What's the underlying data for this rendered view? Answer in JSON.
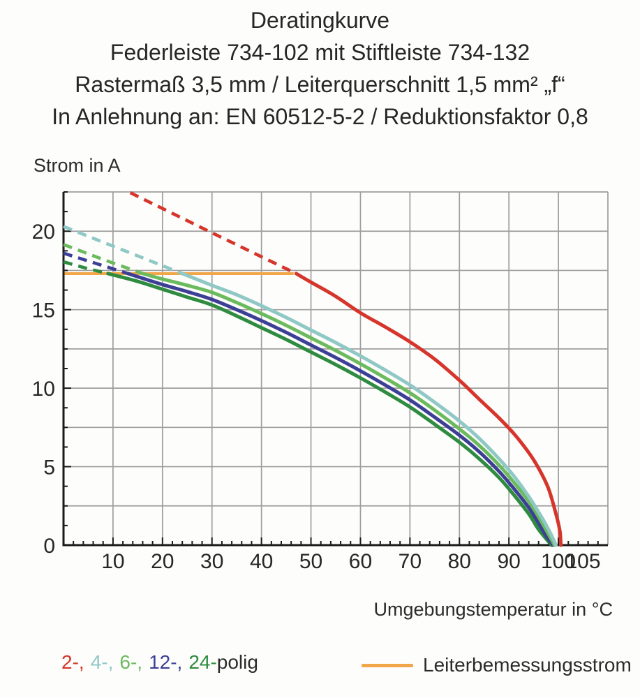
{
  "header": {
    "title_lines": [
      "Deratingkurve",
      "Federleiste 734-102 mit Stiftleiste 734-132",
      "Rastermaß 3,5 mm / Leiterquerschnitt 1,5 mm² „f“",
      "In Anlehnung an: EN 60512-5-2 / Reduktionsfaktor 0,8"
    ]
  },
  "chart_data": {
    "type": "line",
    "ylabel": "Strom in A",
    "xlabel": "Umgebungstemperatur in °C",
    "xlim": [
      0,
      110
    ],
    "ylim": [
      0,
      22.5
    ],
    "x_gridlines": [
      10,
      20,
      30,
      40,
      50,
      60,
      70,
      80,
      90,
      100,
      110
    ],
    "y_gridlines": [
      2.5,
      5,
      7.5,
      10,
      12.5,
      15,
      17.5,
      20,
      22.5
    ],
    "x_tick_values": [
      10,
      20,
      30,
      40,
      50,
      60,
      70,
      80,
      90,
      100,
      105
    ],
    "y_tick_values": [
      0,
      5,
      10,
      15,
      20
    ],
    "x_minor_step": 2,
    "y_minor_step": 1.25,
    "grid_color": "#9e9e9e",
    "axis_color": "#1a1a1a",
    "reference_line": {
      "label": "Leiterbemessungsstrom",
      "color": "#f2a64a",
      "value": 17.3,
      "x_start": 0,
      "x_end": 46.5
    },
    "series": [
      {
        "name": "2-polig",
        "color": "#d6352b",
        "dashed": [
          [
            13.5,
            22.45
          ],
          [
            30,
            19.9
          ],
          [
            47,
            17.3
          ]
        ],
        "solid": [
          [
            47,
            17.3
          ],
          [
            50,
            16.75
          ],
          [
            55,
            15.85
          ],
          [
            60,
            14.8
          ],
          [
            65,
            13.9
          ],
          [
            70,
            12.95
          ],
          [
            75,
            11.85
          ],
          [
            80,
            10.5
          ],
          [
            84,
            9.3
          ],
          [
            88,
            8.1
          ],
          [
            91,
            7.1
          ],
          [
            94,
            5.9
          ],
          [
            96,
            4.9
          ],
          [
            98,
            3.6
          ],
          [
            99.5,
            2.0
          ],
          [
            100.3,
            0.9
          ],
          [
            100.5,
            0
          ]
        ]
      },
      {
        "name": "4-polig",
        "color": "#8fc8c5",
        "dashed": [
          [
            0,
            20.3
          ],
          [
            12,
            18.8
          ],
          [
            24,
            17.3
          ]
        ],
        "solid": [
          [
            24,
            17.3
          ],
          [
            30,
            16.55
          ],
          [
            35,
            15.95
          ],
          [
            40,
            15.25
          ],
          [
            45,
            14.5
          ],
          [
            50,
            13.7
          ],
          [
            55,
            12.9
          ],
          [
            60,
            12.05
          ],
          [
            65,
            11.15
          ],
          [
            70,
            10.2
          ],
          [
            75,
            9.1
          ],
          [
            80,
            7.9
          ],
          [
            84,
            6.8
          ],
          [
            88,
            5.5
          ],
          [
            91,
            4.4
          ],
          [
            94,
            3.1
          ],
          [
            96,
            2.1
          ],
          [
            98,
            1.0
          ],
          [
            99.5,
            0
          ]
        ]
      },
      {
        "name": "6-polig",
        "color": "#6cba5e",
        "dashed": [
          [
            0,
            19.15
          ],
          [
            8,
            18.2
          ],
          [
            16,
            17.3
          ]
        ],
        "solid": [
          [
            16,
            17.3
          ],
          [
            20,
            16.95
          ],
          [
            25,
            16.55
          ],
          [
            30,
            16.1
          ],
          [
            35,
            15.45
          ],
          [
            40,
            14.75
          ],
          [
            45,
            14.0
          ],
          [
            50,
            13.2
          ],
          [
            55,
            12.4
          ],
          [
            60,
            11.55
          ],
          [
            65,
            10.65
          ],
          [
            70,
            9.7
          ],
          [
            75,
            8.6
          ],
          [
            80,
            7.4
          ],
          [
            84,
            6.35
          ],
          [
            88,
            5.1
          ],
          [
            91,
            4.0
          ],
          [
            94,
            2.8
          ],
          [
            96,
            1.8
          ],
          [
            98,
            0.7
          ],
          [
            99.2,
            0
          ]
        ]
      },
      {
        "name": "12-polig",
        "color": "#3c3f95",
        "dashed": [
          [
            0,
            18.6
          ],
          [
            6.5,
            17.95
          ],
          [
            13,
            17.3
          ]
        ],
        "solid": [
          [
            13,
            17.3
          ],
          [
            20,
            16.6
          ],
          [
            25,
            16.15
          ],
          [
            30,
            15.65
          ],
          [
            35,
            15.0
          ],
          [
            40,
            14.3
          ],
          [
            45,
            13.55
          ],
          [
            50,
            12.75
          ],
          [
            55,
            11.95
          ],
          [
            60,
            11.1
          ],
          [
            65,
            10.2
          ],
          [
            70,
            9.25
          ],
          [
            75,
            8.15
          ],
          [
            80,
            7.0
          ],
          [
            84,
            5.95
          ],
          [
            88,
            4.7
          ],
          [
            91,
            3.6
          ],
          [
            94,
            2.4
          ],
          [
            96,
            1.4
          ],
          [
            97.5,
            0.6
          ],
          [
            98.9,
            0
          ]
        ]
      },
      {
        "name": "24-polig",
        "color": "#2e8b3f",
        "dashed": [
          [
            0,
            18.05
          ],
          [
            4.5,
            17.65
          ],
          [
            9,
            17.3
          ]
        ],
        "solid": [
          [
            9,
            17.3
          ],
          [
            15,
            16.8
          ],
          [
            20,
            16.3
          ],
          [
            25,
            15.8
          ],
          [
            30,
            15.3
          ],
          [
            35,
            14.6
          ],
          [
            40,
            13.85
          ],
          [
            45,
            13.1
          ],
          [
            50,
            12.3
          ],
          [
            55,
            11.5
          ],
          [
            60,
            10.65
          ],
          [
            65,
            9.75
          ],
          [
            70,
            8.8
          ],
          [
            75,
            7.7
          ],
          [
            80,
            6.55
          ],
          [
            84,
            5.5
          ],
          [
            88,
            4.3
          ],
          [
            91,
            3.2
          ],
          [
            94,
            2.0
          ],
          [
            96,
            1.0
          ],
          [
            98.6,
            0
          ]
        ]
      }
    ]
  },
  "legend": {
    "pole_segments": [
      {
        "text": "2-,",
        "color": "#d6352b"
      },
      {
        "text": "4-,",
        "color": "#8fc8c5"
      },
      {
        "text": "6-,",
        "color": "#6cba5e"
      },
      {
        "text": "12-,",
        "color": "#3c3f95"
      },
      {
        "text": "24-",
        "color": "#2e8b3f"
      },
      {
        "text": "polig",
        "color": "#2b2b2b"
      }
    ],
    "reference_label": "Leiterbemessungsstrom"
  }
}
